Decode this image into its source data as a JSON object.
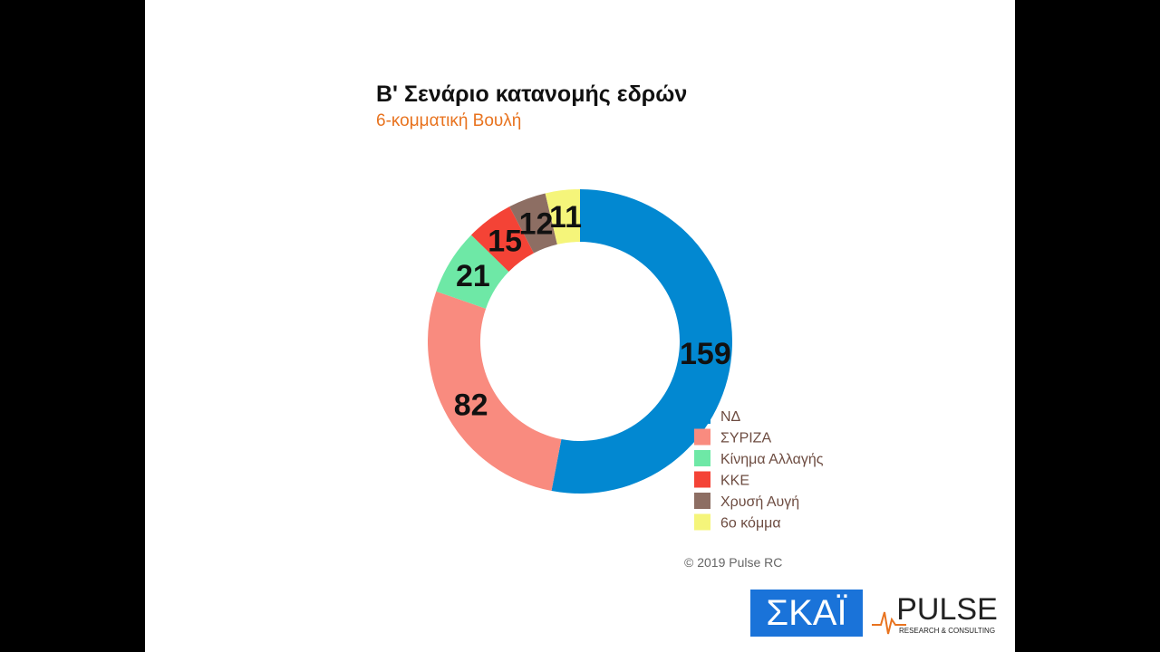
{
  "chart_data": {
    "type": "pie",
    "title": "Β' Σενάριο κατανομής εδρών",
    "subtitle": "6-κομματική Βουλή",
    "categories": [
      "ΝΔ",
      "ΣΥΡΙΖΑ",
      "Κίνημα Αλλαγής",
      "ΚΚΕ",
      "Χρυσή Αυγή",
      "6ο κόμμα"
    ],
    "values": [
      159,
      82,
      21,
      15,
      12,
      11
    ],
    "colors": [
      "#0288d1",
      "#f98b7f",
      "#6ee8a6",
      "#f44336",
      "#8d6e63",
      "#f5f57a"
    ]
  },
  "credit": "© 2019 Pulse RC",
  "logos": {
    "skai": "ΣΚΑΪ",
    "pulse": "PULSE",
    "pulse_sub": "RESEARCH & CONSULTING"
  }
}
